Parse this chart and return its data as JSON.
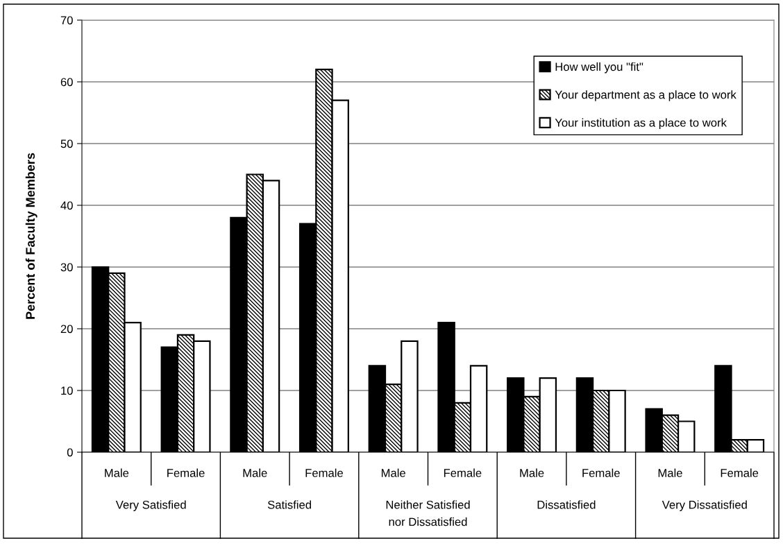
{
  "chart_data": {
    "type": "bar",
    "ylabel": "Percent of Faculty Members",
    "categories": [
      "Male",
      "Female",
      "Male",
      "Female",
      "Male",
      "Female",
      "Male",
      "Female",
      "Male",
      "Female"
    ],
    "annotations": [
      "Very Satisfied",
      "Satisfied",
      "Neither Satisfied\nnor Dissatisfied",
      "Dissatisfied",
      "Very Dissatisfied"
    ],
    "series": [
      {
        "name": "How well you \"fit\"",
        "color": "#000000",
        "values": [
          30,
          17,
          38,
          37,
          14,
          21,
          12,
          12,
          7,
          14
        ]
      },
      {
        "name": "Your department as a place to work",
        "color": "#000000",
        "values": [
          29,
          19,
          45,
          62,
          11,
          8,
          9,
          10,
          6,
          2
        ]
      },
      {
        "name": "Your institution as a place to work",
        "color": "#ffffff",
        "values": [
          21,
          18,
          44,
          57,
          18,
          14,
          12,
          10,
          5,
          2
        ]
      }
    ],
    "ylim": [
      0,
      70
    ],
    "yticks": [
      0,
      10,
      20,
      30,
      40,
      50,
      60,
      70
    ],
    "grid": "y",
    "legend": "top right"
  }
}
